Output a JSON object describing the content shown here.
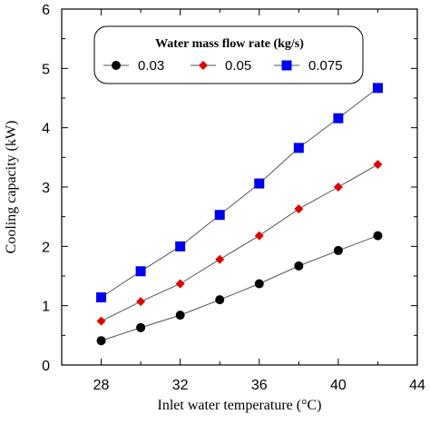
{
  "chart_data": {
    "type": "line",
    "xlabel": "Inlet water temperature (°C)",
    "ylabel": "Cooling capacity (kW)",
    "xlim": [
      26,
      44
    ],
    "ylim": [
      0,
      6
    ],
    "x_ticks": [
      28,
      32,
      36,
      40,
      44
    ],
    "y_ticks": [
      0,
      1,
      2,
      3,
      4,
      5,
      6
    ],
    "grid": false,
    "legend_title": "Water mass flow rate (kg/s)",
    "legend_position": "top-left",
    "x": [
      28,
      30,
      32,
      34,
      36,
      38,
      40,
      42
    ],
    "series": [
      {
        "name": "0.03",
        "marker": "circle",
        "color": "#000000",
        "values": [
          0.41,
          0.63,
          0.84,
          1.1,
          1.37,
          1.67,
          1.93,
          2.18
        ]
      },
      {
        "name": "0.05",
        "marker": "diamond",
        "color": "#e00000",
        "values": [
          0.74,
          1.07,
          1.37,
          1.78,
          2.18,
          2.63,
          3.0,
          3.38
        ]
      },
      {
        "name": "0.075",
        "marker": "square",
        "color": "#0000ee",
        "values": [
          1.14,
          1.58,
          2.0,
          2.53,
          3.06,
          3.66,
          4.16,
          4.67
        ]
      }
    ],
    "line_color": "#555555"
  }
}
